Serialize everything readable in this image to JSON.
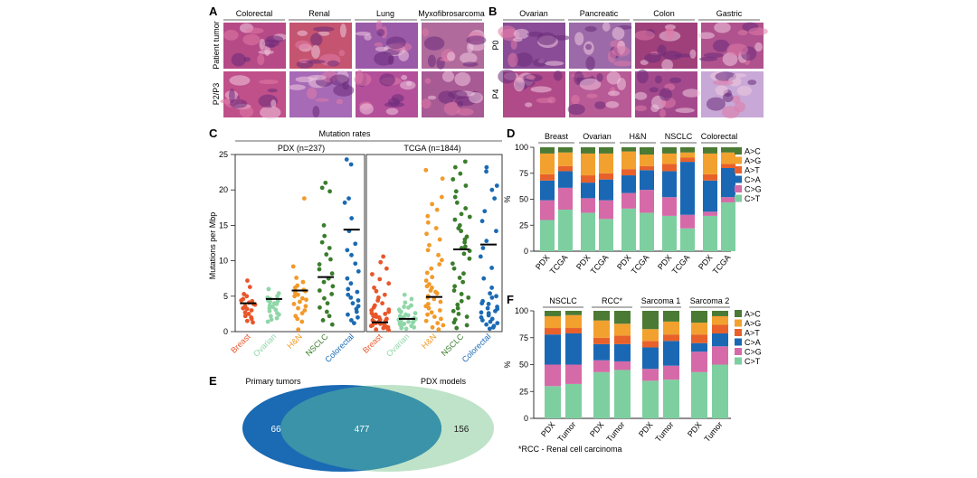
{
  "panel_letters": {
    "A": "A",
    "B": "B",
    "C": "C",
    "D": "D",
    "E": "E",
    "F": "F"
  },
  "panel_a": {
    "columns": [
      "Colorectal",
      "Renal",
      "Lung",
      "Myxofibrosarcoma"
    ],
    "rows": [
      "Patient tumor",
      "P2/P3"
    ]
  },
  "panel_b": {
    "columns": [
      "Ovarian",
      "Pancreatic",
      "Colon",
      "Gastric"
    ],
    "rows": [
      "P0",
      "P4"
    ]
  },
  "tissue_colors": {
    "A": [
      [
        "#b64a86",
        "#c45470",
        "#9a5aa8",
        "#b06a9c"
      ],
      [
        "#c0508a",
        "#a66ab6",
        "#b4509a",
        "#a85a94"
      ]
    ],
    "B": [
      [
        "#8a4c96",
        "#9c6aa8",
        "#a0407a",
        "#b0528e"
      ],
      [
        "#b04a88",
        "#b85a96",
        "#a44a8c",
        "#c8a8d6"
      ]
    ]
  },
  "chart_data": [
    {
      "panel": "C",
      "type": "scatter",
      "title": "Mutation rates",
      "ylabel": "Mutations per Mbp",
      "ylim": [
        0,
        25
      ],
      "yticks": [
        0,
        5,
        10,
        15,
        20,
        25
      ],
      "groups": [
        {
          "name": "PDX",
          "n_label": "PDX (n=237)",
          "categories": [
            "Breast",
            "Ovarian",
            "H&N",
            "NSCLC",
            "Colorectal"
          ],
          "medians": [
            4.0,
            4.6,
            5.8,
            7.7,
            14.4
          ],
          "points": [
            [
              7.2,
              6.3,
              5.3,
              5.0,
              4.6,
              4.4,
              4.3,
              4.1,
              3.9,
              3.8,
              3.6,
              3.3,
              3.2,
              3.0,
              2.7,
              2.5,
              2.2,
              2.0,
              1.8,
              1.5,
              1.3
            ],
            [
              6.0,
              5.4,
              5.0,
              4.8,
              4.6,
              4.4,
              4.3,
              4.2,
              4.0,
              3.9,
              3.7,
              3.5,
              3.3,
              3.1,
              2.9,
              2.6,
              2.4,
              2.2,
              1.9,
              1.7,
              1.4
            ],
            [
              18.8,
              9.2,
              7.6,
              7.0,
              6.5,
              6.2,
              5.9,
              5.7,
              5.5,
              5.2,
              5.0,
              4.7,
              4.5,
              4.2,
              3.9,
              3.6,
              3.3,
              3.0,
              2.6,
              2.2,
              1.8,
              1.4,
              0.3
            ],
            [
              21.0,
              20.3,
              19.8,
              15.0,
              13.5,
              12.6,
              11.8,
              10.9,
              10.2,
              9.5,
              8.8,
              8.2,
              7.5,
              7.0,
              6.4,
              5.8,
              5.3,
              4.7,
              4.0,
              3.4,
              2.8,
              2.2,
              1.6,
              1.0
            ],
            [
              24.3,
              23.6,
              18.8,
              18.2,
              16.0,
              14.2,
              12.4,
              11.5,
              10.8,
              9.6,
              8.5,
              7.5,
              6.8,
              6.0,
              5.6,
              5.2,
              4.8,
              4.4,
              4.0,
              3.6,
              3.2,
              2.8,
              2.4,
              2.0,
              1.6,
              1.2
            ]
          ]
        },
        {
          "name": "TCGA",
          "n_label": "TCGA (n=1844)",
          "categories": [
            "Breast",
            "Ovarian",
            "H&N",
            "NSCLC",
            "Colorectal"
          ],
          "medians": [
            1.3,
            1.8,
            4.9,
            11.6,
            12.3
          ],
          "points": [
            [
              10.6,
              9.8,
              8.9,
              8.1,
              7.4,
              6.8,
              6.2,
              5.7,
              5.2,
              4.8,
              4.4,
              4.0,
              3.7,
              3.4,
              3.1,
              2.8,
              2.6,
              2.4,
              2.2,
              2.0,
              1.8,
              1.6,
              1.5,
              1.3,
              1.2,
              1.1,
              1.0,
              0.9,
              0.8,
              0.7,
              0.6,
              0.5,
              0.4,
              0.3,
              0.2,
              1.4,
              1.7,
              2.1,
              2.5,
              3.0
            ],
            [
              5.2,
              4.6,
              4.1,
              3.7,
              3.4,
              3.1,
              2.8,
              2.6,
              2.4,
              2.2,
              2.0,
              1.9,
              1.8,
              1.7,
              1.6,
              1.5,
              1.4,
              1.3,
              1.2,
              1.1,
              1.0,
              0.9,
              0.8,
              0.7,
              0.6,
              0.5,
              0.4,
              2.3,
              2.9,
              3.5
            ],
            [
              22.8,
              21.6,
              19.0,
              18.0,
              17.2,
              16.3,
              15.4,
              14.6,
              13.8,
              13.0,
              12.2,
              11.5,
              10.8,
              10.1,
              9.5,
              8.9,
              8.3,
              7.7,
              7.2,
              6.7,
              6.2,
              5.8,
              5.4,
              5.0,
              4.6,
              4.2,
              3.9,
              3.6,
              3.3,
              3.0,
              2.7,
              2.4,
              2.1,
              1.8,
              1.5,
              1.2,
              0.9,
              0.6,
              0.3,
              4.8,
              5.6,
              6.4
            ],
            [
              24.0,
              23.2,
              22.3,
              21.5,
              20.6,
              19.8,
              19.0,
              18.2,
              17.4,
              16.6,
              15.8,
              15.0,
              14.2,
              13.4,
              12.6,
              11.8,
              11.0,
              10.3,
              9.6,
              8.9,
              8.2,
              7.6,
              7.0,
              6.4,
              5.8,
              5.3,
              4.8,
              4.3,
              3.8,
              3.3,
              2.9,
              2.5,
              2.1,
              1.7,
              1.3,
              0.9,
              0.5,
              11.4,
              12.0,
              13.0,
              14.6,
              16.2
            ],
            [
              23.2,
              22.6,
              20.6,
              20.0,
              18.8,
              17.0,
              15.6,
              14.2,
              12.8,
              11.8,
              10.6,
              9.0,
              7.5,
              6.2,
              5.4,
              4.8,
              4.3,
              3.9,
              3.5,
              3.2,
              2.9,
              2.6,
              2.3,
              2.0,
              1.8,
              1.6,
              1.4,
              1.2,
              1.0,
              0.8,
              0.6,
              0.4,
              2.7,
              3.3,
              4.0,
              5.0
            ]
          ]
        }
      ]
    },
    {
      "panel": "D",
      "type": "bar",
      "stacked": true,
      "ylabel": "%",
      "ylim": [
        0,
        100
      ],
      "yticks": [
        0,
        25,
        50,
        75,
        100
      ],
      "legend": [
        "A>C",
        "A>G",
        "A>T",
        "C>A",
        "C>G",
        "C>T"
      ],
      "legend_colors": [
        "#4a7a34",
        "#f2a12e",
        "#e8612a",
        "#1a68b4",
        "#d66aa8",
        "#7ecfa0"
      ],
      "groups": [
        {
          "title": "Breast",
          "bars": [
            {
              "label": "PDX",
              "values": [
                6,
                20,
                6,
                19,
                19,
                30
              ]
            },
            {
              "label": "TCGA",
              "values": [
                5,
                13,
                5,
                16,
                21,
                40
              ]
            }
          ]
        },
        {
          "title": "Ovarian",
          "bars": [
            {
              "label": "PDX",
              "values": [
                6,
                21,
                7,
                15,
                14,
                37
              ]
            },
            {
              "label": "TCGA",
              "values": [
                6,
                19,
                6,
                20,
                18,
                31
              ]
            }
          ]
        },
        {
          "title": "H&N",
          "bars": [
            {
              "label": "PDX",
              "values": [
                4,
                17,
                6,
                17,
                15,
                41
              ]
            },
            {
              "label": "TCGA",
              "values": [
                7,
                11,
                4,
                19,
                22,
                37
              ]
            }
          ]
        },
        {
          "title": "NSCLC",
          "bars": [
            {
              "label": "PDX",
              "values": [
                6,
                10,
                7,
                25,
                18,
                34
              ]
            },
            {
              "label": "TCGA",
              "values": [
                5,
                5,
                4,
                51,
                13,
                22
              ]
            }
          ]
        },
        {
          "title": "Colorectal",
          "bars": [
            {
              "label": "PDX",
              "values": [
                6,
                20,
                6,
                30,
                4,
                34
              ]
            },
            {
              "label": "TCGA",
              "values": [
                5,
                11,
                4,
                28,
                5,
                47
              ]
            }
          ]
        }
      ]
    },
    {
      "panel": "F",
      "type": "bar",
      "stacked": true,
      "ylabel": "%",
      "ylim": [
        0,
        100
      ],
      "yticks": [
        0,
        25,
        50,
        75,
        100
      ],
      "legend": [
        "A>C",
        "A>G",
        "A>T",
        "C>A",
        "C>G",
        "C>T"
      ],
      "legend_colors": [
        "#4a7a34",
        "#f2a12e",
        "#e8612a",
        "#1a68b4",
        "#d66aa8",
        "#7ecfa0"
      ],
      "footnote": "*RCC - Renal cell carcinoma",
      "groups": [
        {
          "title": "NSCLC",
          "bars": [
            {
              "label": "PDX",
              "values": [
                5,
                11,
                6,
                28,
                20,
                30
              ]
            },
            {
              "label": "Tumor",
              "values": [
                4,
                12,
                5,
                29,
                18,
                32
              ]
            }
          ]
        },
        {
          "title": "RCC*",
          "bars": [
            {
              "label": "PDX",
              "values": [
                9,
                16,
                6,
                15,
                11,
                43
              ]
            },
            {
              "label": "Tumor",
              "values": [
                12,
                11,
                8,
                16,
                8,
                45
              ]
            }
          ]
        },
        {
          "title": "Sarcoma 1",
          "bars": [
            {
              "label": "PDX",
              "values": [
                17,
                11,
                6,
                20,
                11,
                35
              ]
            },
            {
              "label": "Tumor",
              "values": [
                10,
                12,
                6,
                23,
                13,
                36
              ]
            }
          ]
        },
        {
          "title": "Sarcoma 2",
          "bars": [
            {
              "label": "PDX",
              "values": [
                11,
                11,
                8,
                8,
                19,
                43
              ]
            },
            {
              "label": "Tumor",
              "values": [
                5,
                8,
                8,
                12,
                17,
                50
              ]
            }
          ]
        }
      ]
    },
    {
      "panel": "E",
      "type": "venn",
      "sets": [
        {
          "label": "Primary tumors",
          "only": "66"
        },
        {
          "label": "PDX models",
          "only": "156"
        }
      ],
      "overlap": "477"
    }
  ],
  "colors": {
    "breast": "#e8562a",
    "ovarian": "#8fd6a8",
    "hn": "#f29a2a",
    "nsclc": "#3a7d2c",
    "colorectal": "#1a6ab4",
    "venn_left": "#1a6ab4",
    "venn_right": "#bfe3c8",
    "venn_overlap": "#3a93a8"
  }
}
